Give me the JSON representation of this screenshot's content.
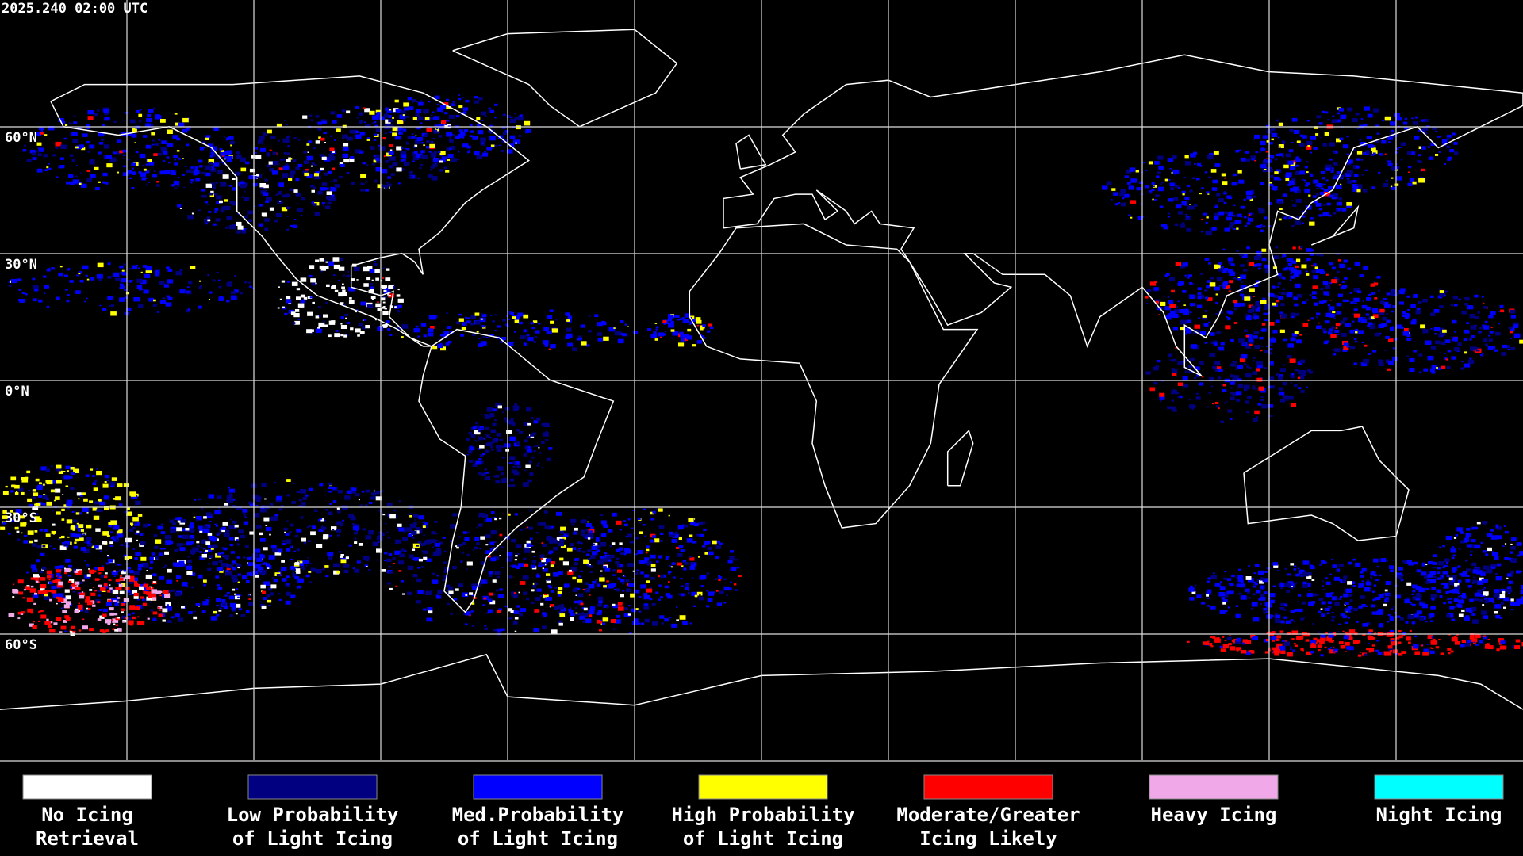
{
  "map": {
    "timestamp": "2025.240 02:00 UTC",
    "lat_labels": [
      "60°N",
      "30°N",
      "0°N",
      "30°S",
      "60°S"
    ]
  },
  "legend": [
    {
      "label": [
        "No Icing",
        "Retrieval"
      ],
      "color": "#ffffff"
    },
    {
      "label": [
        "Low Probability",
        "of Light Icing"
      ],
      "color": "#000080"
    },
    {
      "label": [
        "Med.Probability",
        "of Light Icing"
      ],
      "color": "#0000ff"
    },
    {
      "label": [
        "High Probability",
        "of Light Icing"
      ],
      "color": "#ffff00"
    },
    {
      "label": [
        "Moderate/Greater",
        "Icing Likely"
      ],
      "color": "#ff0000"
    },
    {
      "label": [
        "Heavy Icing"
      ],
      "color": "#f0a8e8"
    },
    {
      "label": [
        "Night Icing"
      ],
      "color": "#00ffff"
    }
  ]
}
